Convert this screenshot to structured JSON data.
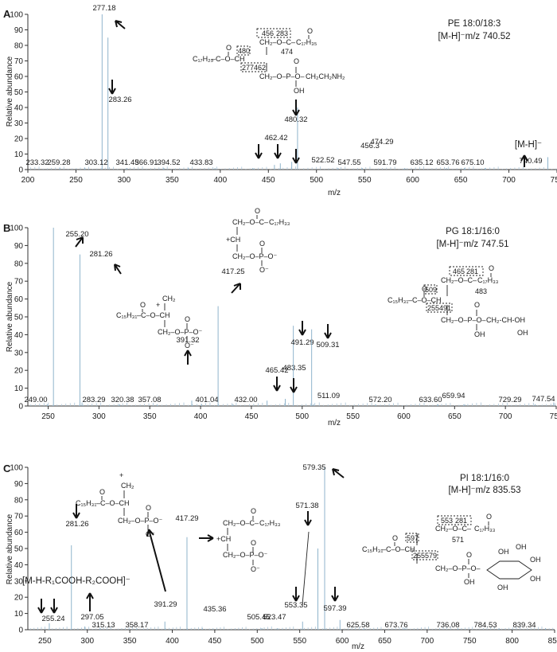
{
  "axes": {
    "ylabel": "Relative abundance",
    "xlabel": "m/z"
  },
  "chart_data": [
    {
      "type": "bar",
      "panel": "A",
      "xlim": [
        200,
        750
      ],
      "ylim": [
        0,
        100
      ],
      "xticks": [
        200,
        250,
        300,
        350,
        400,
        450,
        500,
        550,
        600,
        650,
        700,
        750
      ],
      "yticks": [
        0,
        10,
        20,
        30,
        40,
        50,
        60,
        70,
        80,
        90,
        100
      ],
      "annotation": {
        "line1": "PE 18:0/18:3",
        "line2": "[M-H]⁻m/z 740.52"
      },
      "peaks": [
        {
          "mz": 233.32,
          "intensity": 1,
          "label": "233.32"
        },
        {
          "mz": 259.28,
          "intensity": 1,
          "label": "259.28"
        },
        {
          "mz": 277.18,
          "intensity": 100,
          "label": "277.18"
        },
        {
          "mz": 283.26,
          "intensity": 85,
          "label": "283.26"
        },
        {
          "mz": 303.12,
          "intensity": 1,
          "label": "303.12"
        },
        {
          "mz": 341.45,
          "intensity": 1,
          "label": "341.45"
        },
        {
          "mz": 366.91,
          "intensity": 1,
          "label": "366.91"
        },
        {
          "mz": 394.52,
          "intensity": 1,
          "label": "394.52"
        },
        {
          "mz": 433.83,
          "intensity": 1,
          "label": "433.83"
        },
        {
          "mz": 456.3,
          "intensity": 3,
          "label": "456.3"
        },
        {
          "mz": 462.42,
          "intensity": 4,
          "label": "462.42"
        },
        {
          "mz": 474.29,
          "intensity": 5,
          "label": "474.29"
        },
        {
          "mz": 480.32,
          "intensity": 40,
          "label": "480.32"
        },
        {
          "mz": 522.52,
          "intensity": 1,
          "label": "522.52"
        },
        {
          "mz": 547.55,
          "intensity": 1,
          "label": "547.55"
        },
        {
          "mz": 591.79,
          "intensity": 1,
          "label": "591.79"
        },
        {
          "mz": 635.12,
          "intensity": 1,
          "label": "635.12"
        },
        {
          "mz": 653.76,
          "intensity": 1,
          "label": "653.76"
        },
        {
          "mz": 675.1,
          "intensity": 1,
          "label": "675.10"
        },
        {
          "mz": 740.49,
          "intensity": 8,
          "label": "740.49"
        }
      ],
      "ion_label": "[M-H]⁻",
      "structure": {
        "acyl1": "C₁₇H₃₅",
        "acyl2": "C₁₇H₂₉",
        "head": "CH₂CH₂NH₂",
        "frag": [
          "480",
          "456",
          "283",
          "474",
          "277",
          "462"
        ]
      }
    },
    {
      "type": "bar",
      "panel": "B",
      "xlim": [
        230,
        750
      ],
      "ylim": [
        0,
        100
      ],
      "xticks": [
        250,
        300,
        350,
        400,
        450,
        500,
        550,
        600,
        650,
        700,
        750
      ],
      "yticks": [
        0,
        10,
        20,
        30,
        40,
        50,
        60,
        70,
        80,
        90,
        100
      ],
      "annotation": {
        "line1": "PG 18:1/16:0",
        "line2": "[M-H]⁻m/z 747.51"
      },
      "peaks": [
        {
          "mz": 249.0,
          "intensity": 1,
          "label": "249.00"
        },
        {
          "mz": 255.2,
          "intensity": 100,
          "label": "255.20"
        },
        {
          "mz": 281.26,
          "intensity": 85,
          "label": "281.26"
        },
        {
          "mz": 283.29,
          "intensity": 2,
          "label": "283.29"
        },
        {
          "mz": 320.38,
          "intensity": 1,
          "label": "320.38"
        },
        {
          "mz": 357.08,
          "intensity": 1,
          "label": "357.08"
        },
        {
          "mz": 391.32,
          "intensity": 3,
          "label": "391.32"
        },
        {
          "mz": 401.04,
          "intensity": 1,
          "label": "401.04"
        },
        {
          "mz": 417.25,
          "intensity": 56,
          "label": "417.25"
        },
        {
          "mz": 432.0,
          "intensity": 1,
          "label": "432.00"
        },
        {
          "mz": 465.42,
          "intensity": 3,
          "label": "465.42"
        },
        {
          "mz": 483.35,
          "intensity": 4,
          "label": "483.35"
        },
        {
          "mz": 491.29,
          "intensity": 45,
          "label": "491.29"
        },
        {
          "mz": 509.31,
          "intensity": 43,
          "label": "509.31"
        },
        {
          "mz": 511.09,
          "intensity": 1,
          "label": "511.09"
        },
        {
          "mz": 572.2,
          "intensity": 1,
          "label": "572.20"
        },
        {
          "mz": 633.6,
          "intensity": 1,
          "label": "633.60"
        },
        {
          "mz": 659.94,
          "intensity": 1,
          "label": "659.94"
        },
        {
          "mz": 729.29,
          "intensity": 1,
          "label": "729.29"
        },
        {
          "mz": 747.54,
          "intensity": 2,
          "label": "747.54"
        }
      ],
      "structure": {
        "acyl1": "C₁₇H₃₃",
        "acyl2": "C₁₅H₃₁",
        "head": "CH₂-CH-OH",
        "frag": [
          "509",
          "465",
          "281",
          "483",
          "255",
          "491"
        ]
      }
    },
    {
      "type": "bar",
      "panel": "C",
      "xlim": [
        230,
        850
      ],
      "ylim": [
        0,
        100
      ],
      "xticks": [
        250,
        300,
        350,
        400,
        450,
        500,
        550,
        600,
        650,
        700,
        750,
        800,
        850
      ],
      "yticks": [
        0,
        10,
        20,
        30,
        40,
        50,
        60,
        70,
        80,
        90,
        100
      ],
      "annotation": {
        "line1": "PI 18:1/16:0",
        "line2": "[M-H]⁻m/z 835.53"
      },
      "peaks": [
        {
          "mz": 255.24,
          "intensity": 4,
          "label": "255.24"
        },
        {
          "mz": 281.26,
          "intensity": 52,
          "label": "281.26"
        },
        {
          "mz": 297.05,
          "intensity": 2,
          "label": "297.05"
        },
        {
          "mz": 315.13,
          "intensity": 1,
          "label": "315.13"
        },
        {
          "mz": 358.17,
          "intensity": 1,
          "label": "358.17"
        },
        {
          "mz": 391.29,
          "intensity": 5,
          "label": "391.29"
        },
        {
          "mz": 417.29,
          "intensity": 57,
          "label": "417.29"
        },
        {
          "mz": 435.36,
          "intensity": 1,
          "label": "435.36"
        },
        {
          "mz": 505.45,
          "intensity": 1,
          "label": "505.45"
        },
        {
          "mz": 523.47,
          "intensity": 1,
          "label": "523.47"
        },
        {
          "mz": 553.35,
          "intensity": 5,
          "label": "553.35"
        },
        {
          "mz": 571.38,
          "intensity": 50,
          "label": "571.38"
        },
        {
          "mz": 579.35,
          "intensity": 100,
          "label": "579.35"
        },
        {
          "mz": 597.39,
          "intensity": 6,
          "label": "597.39"
        },
        {
          "mz": 625.58,
          "intensity": 1,
          "label": "625.58"
        },
        {
          "mz": 673.76,
          "intensity": 1,
          "label": "673.76"
        },
        {
          "mz": 736.08,
          "intensity": 1,
          "label": "736.08"
        },
        {
          "mz": 784.53,
          "intensity": 1,
          "label": "784.53"
        },
        {
          "mz": 839.34,
          "intensity": 1,
          "label": "839.34"
        }
      ],
      "ion_label": "[M-H-R₁COOH-R₂COOH]⁻",
      "structure": {
        "acyl1": "C₁₇H₃₃",
        "acyl2": "C₁₅H₃₁",
        "frag": [
          "597",
          "553",
          "281",
          "571",
          "255",
          "579"
        ]
      }
    }
  ]
}
